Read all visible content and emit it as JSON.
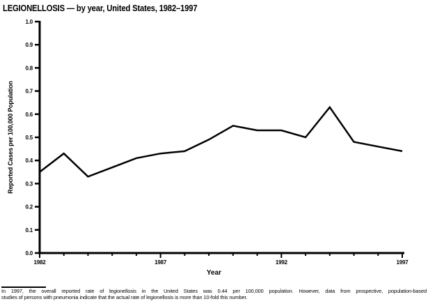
{
  "title": "LEGIONELLOSIS — by year, United States, 1982–1997",
  "chart_data": {
    "type": "line",
    "title": "LEGIONELLOSIS — by year, United States, 1982–1997",
    "x": [
      1982,
      1983,
      1984,
      1985,
      1986,
      1987,
      1988,
      1989,
      1990,
      1991,
      1992,
      1993,
      1994,
      1995,
      1996,
      1997
    ],
    "values": [
      0.35,
      0.43,
      0.33,
      0.37,
      0.41,
      0.43,
      0.44,
      0.49,
      0.55,
      0.53,
      0.53,
      0.5,
      0.63,
      0.48,
      0.46,
      0.44
    ],
    "xlabel": "Year",
    "ylabel": "Reported Cases per 100,000 Population",
    "ylim": [
      0.0,
      1.0
    ],
    "ytick_step": 0.1,
    "xticks_labeled": [
      1982,
      1987,
      1992,
      1997
    ],
    "grid": false,
    "legend": "none",
    "line_color": "#000000",
    "background": "#ffffff"
  },
  "footnote": {
    "lines": [
      "In 1997, the overall reported rate of legionellosis in the United States was 0.44 per 100,000 population. However, data from prospective, population-based",
      "studies of persons with pneumonia indicate that the actual rate of legionellosis is more than 10-fold this number."
    ]
  }
}
